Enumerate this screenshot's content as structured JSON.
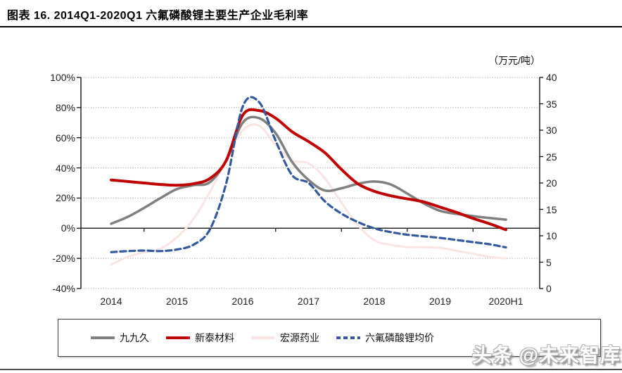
{
  "header": {
    "title": "图表 16. 2014Q1-2020Q1 六氟磷酸锂主要生产企业毛利率"
  },
  "watermark": {
    "text": "头条 @未来智库"
  },
  "chart_data": {
    "type": "line",
    "title": "2014Q1-2020Q1 六氟磷酸锂主要生产企业毛利率",
    "grid": "dotted horizontal",
    "legend_position": "bottom",
    "x_labels": [
      "2014",
      "2015",
      "2016",
      "2017",
      "2018",
      "2019",
      "2020H1"
    ],
    "x_label_point_indices": [
      0,
      4,
      8,
      12,
      16,
      20,
      24
    ],
    "x_categories": [
      "2014Q1",
      "2014Q2",
      "2014Q3",
      "2014Q4",
      "2015Q1",
      "2015Q2",
      "2015Q3",
      "2015Q4",
      "2016Q1",
      "2016Q2",
      "2016Q3",
      "2016Q4",
      "2017Q1",
      "2017Q2",
      "2017Q3",
      "2017Q4",
      "2018Q1",
      "2018Q2",
      "2018Q3",
      "2018Q4",
      "2019Q1",
      "2019Q2",
      "2019Q3",
      "2019Q4",
      "2020H1"
    ],
    "left_axis": {
      "labels": [
        "100%",
        "80%",
        "60%",
        "40%",
        "20%",
        "0%",
        "-20%",
        "-40%"
      ],
      "values": [
        100,
        80,
        60,
        40,
        20,
        0,
        -20,
        -40
      ],
      "min": -40,
      "max": 100
    },
    "right_axis": {
      "unit": "（万元/吨）",
      "labels": [
        "40",
        "35",
        "30",
        "25",
        "20",
        "15",
        "10",
        "5",
        "0"
      ],
      "values": [
        40,
        35,
        30,
        25,
        20,
        15,
        10,
        5,
        0
      ],
      "min": 0,
      "max": 40
    },
    "colors": {
      "axis": "#000000",
      "gridline": "#a8a8a8"
    },
    "series": [
      {
        "name": "九九久",
        "color": "#808080",
        "style": "solid",
        "axis": "left",
        "unit": "%",
        "values": [
          3,
          7.5,
          13.5,
          20,
          26,
          28.5,
          30.5,
          45,
          70,
          73,
          63,
          44,
          32,
          25,
          26.5,
          29.5,
          31,
          29,
          23,
          16.5,
          11.5,
          9.5,
          8,
          6.8,
          5.7
        ]
      },
      {
        "name": "新泰材料",
        "color": "#c00000",
        "style": "solid",
        "axis": "left",
        "unit": "%",
        "values": [
          32,
          31,
          30,
          29,
          28.5,
          29.5,
          33,
          45,
          75,
          78,
          73,
          64,
          57.5,
          50,
          39,
          29.5,
          24.5,
          21.5,
          19.5,
          17.5,
          14,
          10.5,
          6.5,
          3,
          -1
        ]
      },
      {
        "name": "宏源药业",
        "color": "#fbe5e2",
        "style": "solid",
        "axis": "left",
        "unit": "%",
        "values": [
          -24,
          -19,
          -16,
          -13.5,
          -6,
          6,
          24,
          45,
          65,
          68,
          55,
          45,
          43,
          33,
          17,
          2,
          -8,
          -11,
          -12.5,
          -12.5,
          -13,
          -15,
          -17,
          -19,
          -20
        ]
      },
      {
        "name": "六氟磷酸锂均价",
        "color": "#335a9e",
        "style": "dashed",
        "axis": "right",
        "unit": "万元/吨",
        "values": [
          6.9,
          7.1,
          7.2,
          7.1,
          7.4,
          8.3,
          11.2,
          20,
          34.5,
          35.3,
          28,
          21.5,
          20,
          16.5,
          14.2,
          12.6,
          11.4,
          10.7,
          10.2,
          9.9,
          9.6,
          9.2,
          8.8,
          8.4,
          7.8
        ]
      }
    ]
  }
}
